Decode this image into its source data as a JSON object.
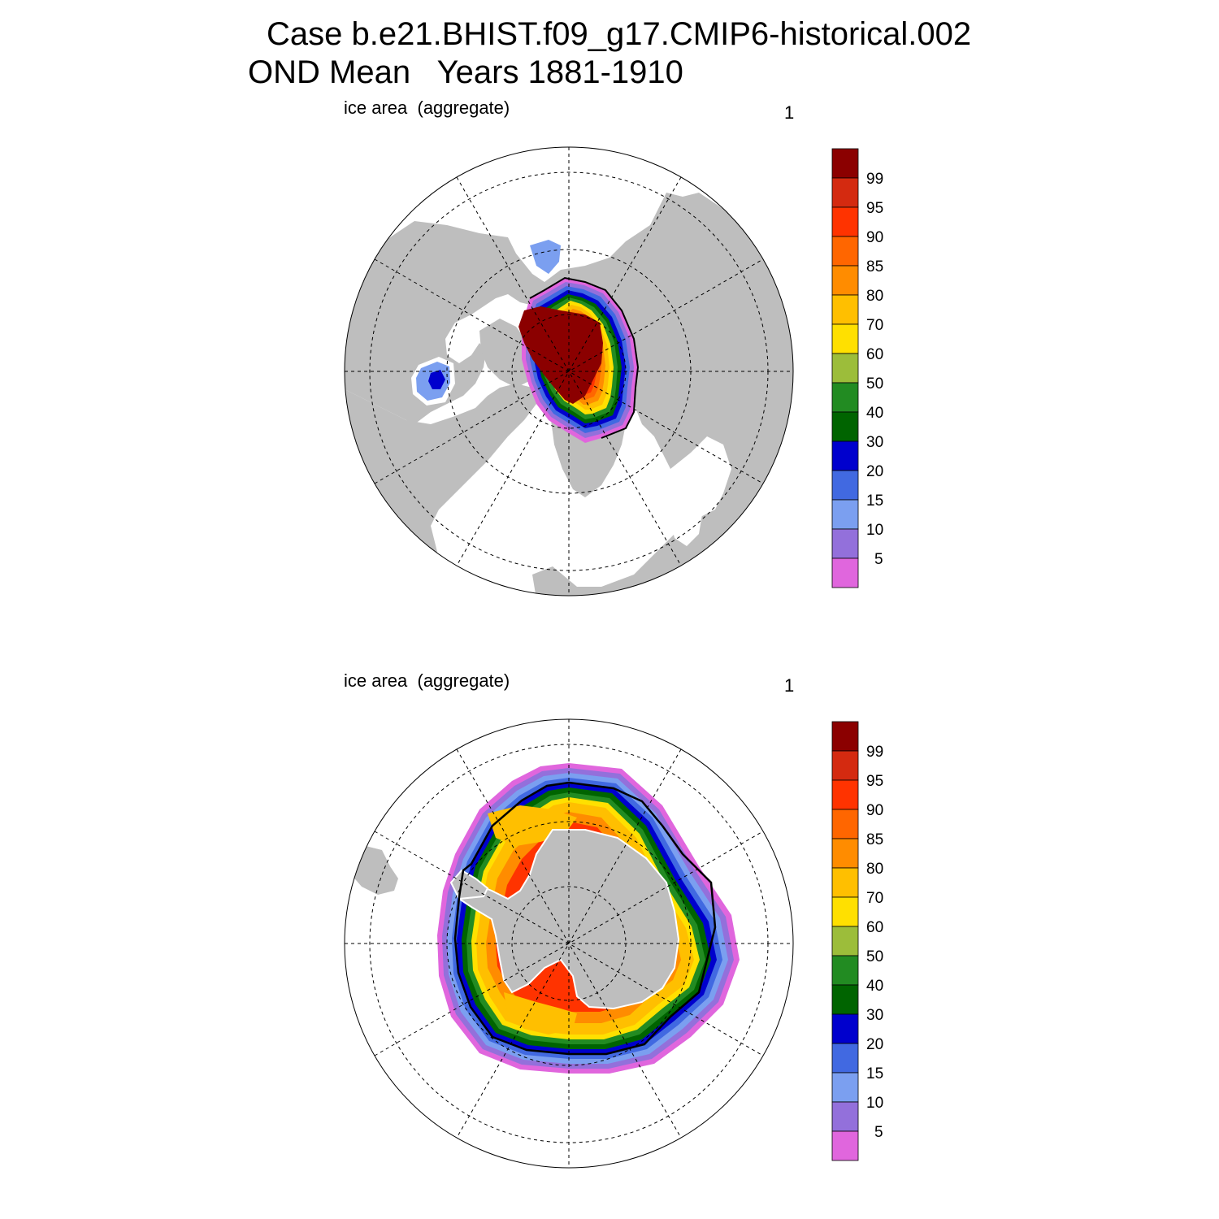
{
  "title": {
    "line1": "Case b.e21.BHIST.f09_g17.CMIP6-historical.002",
    "line2": "OND Mean   Years 1881-1910"
  },
  "panels": [
    {
      "id": "north",
      "left_label": "ice area  (aggregate)",
      "right_label": "1",
      "hemisphere": "north"
    },
    {
      "id": "south",
      "left_label": "ice area  (aggregate)",
      "right_label": "1",
      "hemisphere": "south"
    }
  ],
  "colorbar": {
    "levels": [
      "99",
      "95",
      "90",
      "85",
      "80",
      "70",
      "60",
      "50",
      "40",
      "30",
      "20",
      "15",
      "10",
      "5"
    ],
    "colors": [
      "#8b0000",
      "#d42a10",
      "#ff3300",
      "#ff6600",
      "#ff8c00",
      "#ffbf00",
      "#ffe000",
      "#9cbd3a",
      "#228b22",
      "#006400",
      "#0000cd",
      "#4169e1",
      "#7b9ff0",
      "#9370db",
      "#e066dd"
    ]
  },
  "colors": {
    "land": "#bebebe",
    "ocean": "#ffffff",
    "edge_line": "#000000"
  }
}
